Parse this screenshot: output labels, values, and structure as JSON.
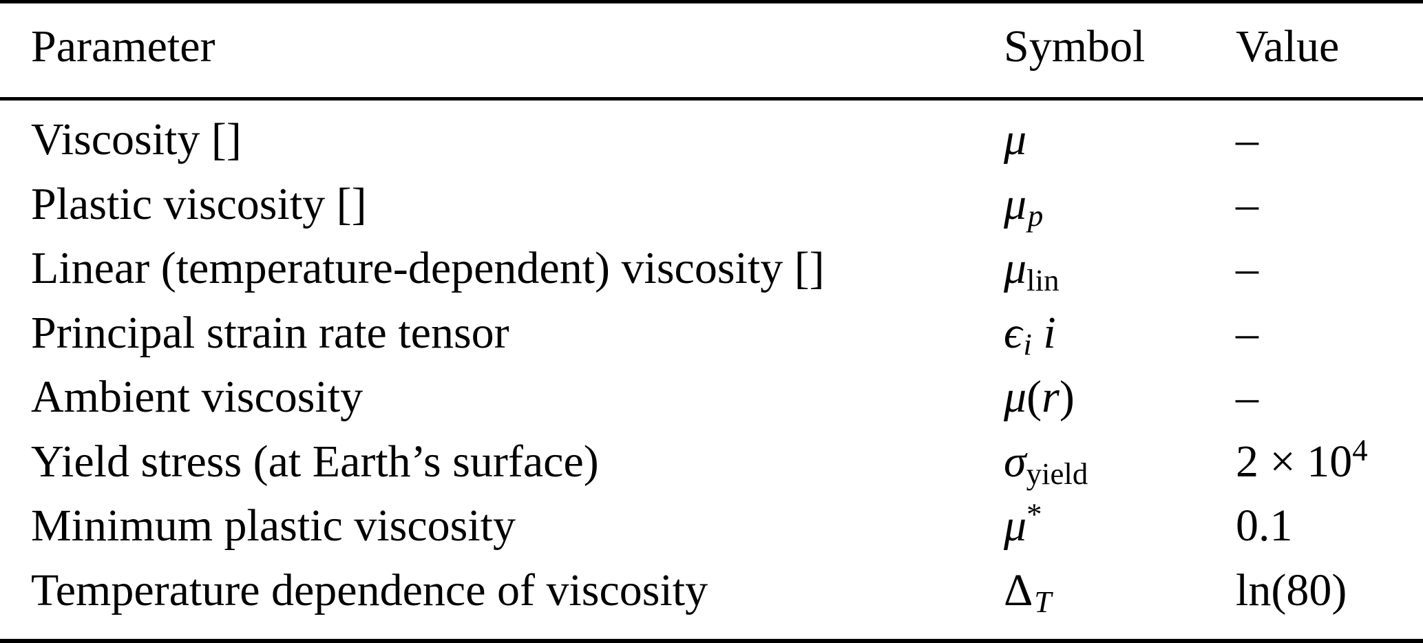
{
  "colors": {
    "background": "#ffffff",
    "text": "#000000",
    "rule": "#000000"
  },
  "table": {
    "columns": [
      {
        "label": "Parameter"
      },
      {
        "label": "Symbol"
      },
      {
        "label": "Value"
      }
    ],
    "rows": [
      {
        "parameter": "Viscosity []",
        "symbol": [
          {
            "t": "μ",
            "s": "it"
          }
        ],
        "value": [
          {
            "t": "–",
            "s": "rm"
          }
        ]
      },
      {
        "parameter": "Plastic viscosity []",
        "symbol": [
          {
            "t": "μ",
            "s": "it"
          },
          {
            "t": "p",
            "s": "subit"
          }
        ],
        "value": [
          {
            "t": "–",
            "s": "rm"
          }
        ]
      },
      {
        "parameter": "Linear (temperature-dependent) viscosity []",
        "symbol": [
          {
            "t": "μ",
            "s": "it"
          },
          {
            "t": "lin",
            "s": "subrm"
          }
        ],
        "value": [
          {
            "t": "–",
            "s": "rm"
          }
        ]
      },
      {
        "parameter": "Principal strain rate tensor",
        "symbol": [
          {
            "t": "ϵ",
            "s": "it"
          },
          {
            "t": "i",
            "s": "subit"
          },
          {
            "t": " i",
            "s": "it"
          }
        ],
        "value": [
          {
            "t": "–",
            "s": "rm"
          }
        ]
      },
      {
        "parameter": "Ambient viscosity",
        "symbol": [
          {
            "t": "μ",
            "s": "it"
          },
          {
            "t": "(",
            "s": "rm"
          },
          {
            "t": "r",
            "s": "it"
          },
          {
            "t": ")",
            "s": "rm"
          }
        ],
        "value": [
          {
            "t": "–",
            "s": "rm"
          }
        ]
      },
      {
        "parameter": "Yield stress (at Earth’s surface)",
        "symbol": [
          {
            "t": "σ",
            "s": "it"
          },
          {
            "t": "yield",
            "s": "subrm"
          }
        ],
        "value": [
          {
            "t": "2 × 10",
            "s": "rm"
          },
          {
            "t": "4",
            "s": "suprm"
          }
        ]
      },
      {
        "parameter": "Minimum plastic viscosity",
        "symbol": [
          {
            "t": "μ",
            "s": "it"
          },
          {
            "t": "*",
            "s": "suprm"
          }
        ],
        "value": [
          {
            "t": "0.1",
            "s": "rm"
          }
        ]
      },
      {
        "parameter": "Temperature dependence of viscosity",
        "symbol": [
          {
            "t": "Δ",
            "s": "rm"
          },
          {
            "t": "T",
            "s": "subit"
          }
        ],
        "value": [
          {
            "t": "ln(80)",
            "s": "rm"
          }
        ]
      }
    ]
  }
}
